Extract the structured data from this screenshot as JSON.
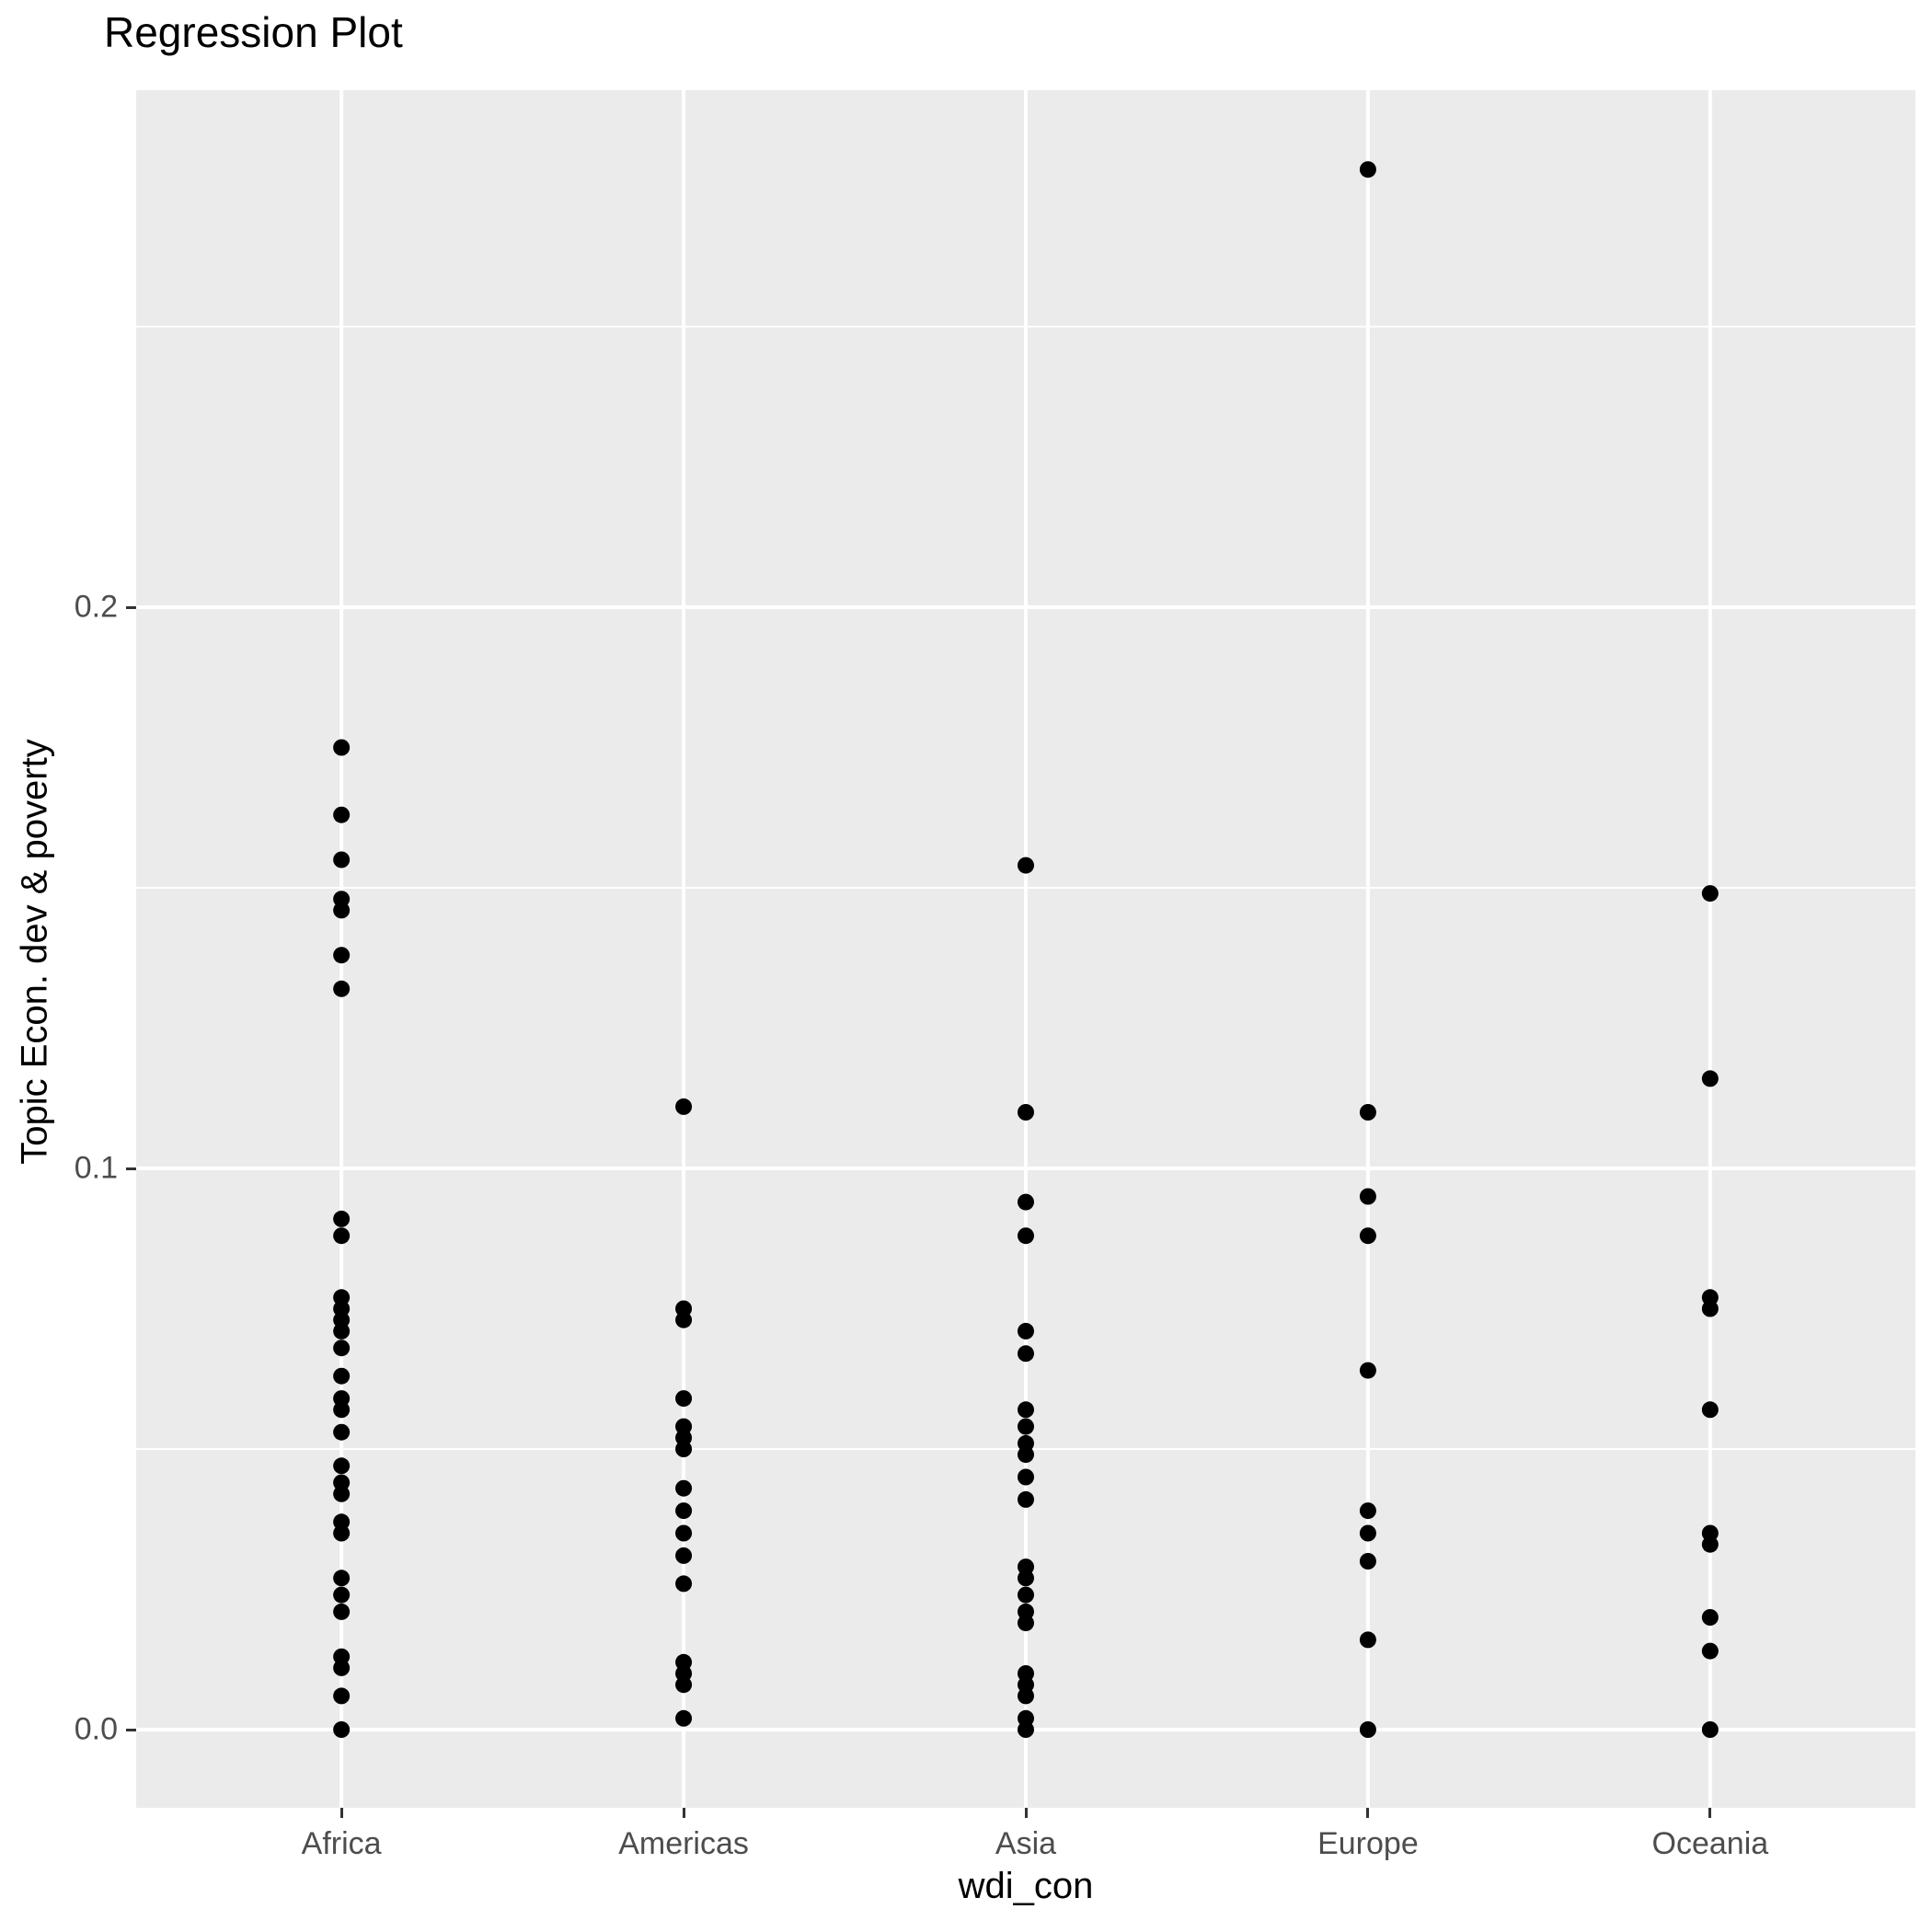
{
  "title": "Regression Plot",
  "chart_data": {
    "type": "scatter",
    "subtype": "categorical-strip-plot",
    "title": "Regression Plot",
    "xlabel": "wdi_con",
    "ylabel": "Topic Econ. dev & poverty",
    "categories": [
      "Africa",
      "Americas",
      "Asia",
      "Europe",
      "Oceania"
    ],
    "y_ticks": [
      {
        "label": "0.0",
        "value": 0.0
      },
      {
        "label": "0.1",
        "value": 0.1
      },
      {
        "label": "0.2",
        "value": 0.2
      }
    ],
    "ylim": [
      -0.014,
      0.292
    ],
    "grid": {
      "major_y": [
        0.0,
        0.1,
        0.2
      ],
      "minor_y": [
        0.05,
        0.15,
        0.25
      ],
      "vertical_major_at_categories": true
    },
    "legend_position": "none",
    "colors": {
      "panel_background": "#EBEBEB",
      "gridline": "#FFFFFF",
      "point": "#000000",
      "tick_label": "#4D4D4D",
      "tick_mark": "#333333",
      "text": "#000000"
    },
    "series": [
      {
        "name": "Africa",
        "values": [
          0.175,
          0.163,
          0.155,
          0.148,
          0.146,
          0.138,
          0.132,
          0.091,
          0.088,
          0.077,
          0.075,
          0.073,
          0.071,
          0.068,
          0.063,
          0.059,
          0.057,
          0.053,
          0.047,
          0.044,
          0.042,
          0.037,
          0.035,
          0.027,
          0.024,
          0.021,
          0.013,
          0.011,
          0.006,
          0.0
        ]
      },
      {
        "name": "Americas",
        "values": [
          0.111,
          0.075,
          0.073,
          0.059,
          0.054,
          0.052,
          0.05,
          0.043,
          0.039,
          0.035,
          0.031,
          0.026,
          0.012,
          0.01,
          0.008,
          0.002
        ]
      },
      {
        "name": "Asia",
        "values": [
          0.154,
          0.11,
          0.094,
          0.088,
          0.071,
          0.067,
          0.057,
          0.054,
          0.051,
          0.049,
          0.045,
          0.041,
          0.029,
          0.027,
          0.024,
          0.021,
          0.019,
          0.01,
          0.008,
          0.006,
          0.002,
          0.0
        ]
      },
      {
        "name": "Europe",
        "values": [
          0.278,
          0.11,
          0.095,
          0.088,
          0.064,
          0.039,
          0.035,
          0.03,
          0.016,
          0.0
        ]
      },
      {
        "name": "Oceania",
        "values": [
          0.149,
          0.116,
          0.077,
          0.075,
          0.057,
          0.035,
          0.033,
          0.02,
          0.014,
          0.0
        ]
      }
    ]
  }
}
